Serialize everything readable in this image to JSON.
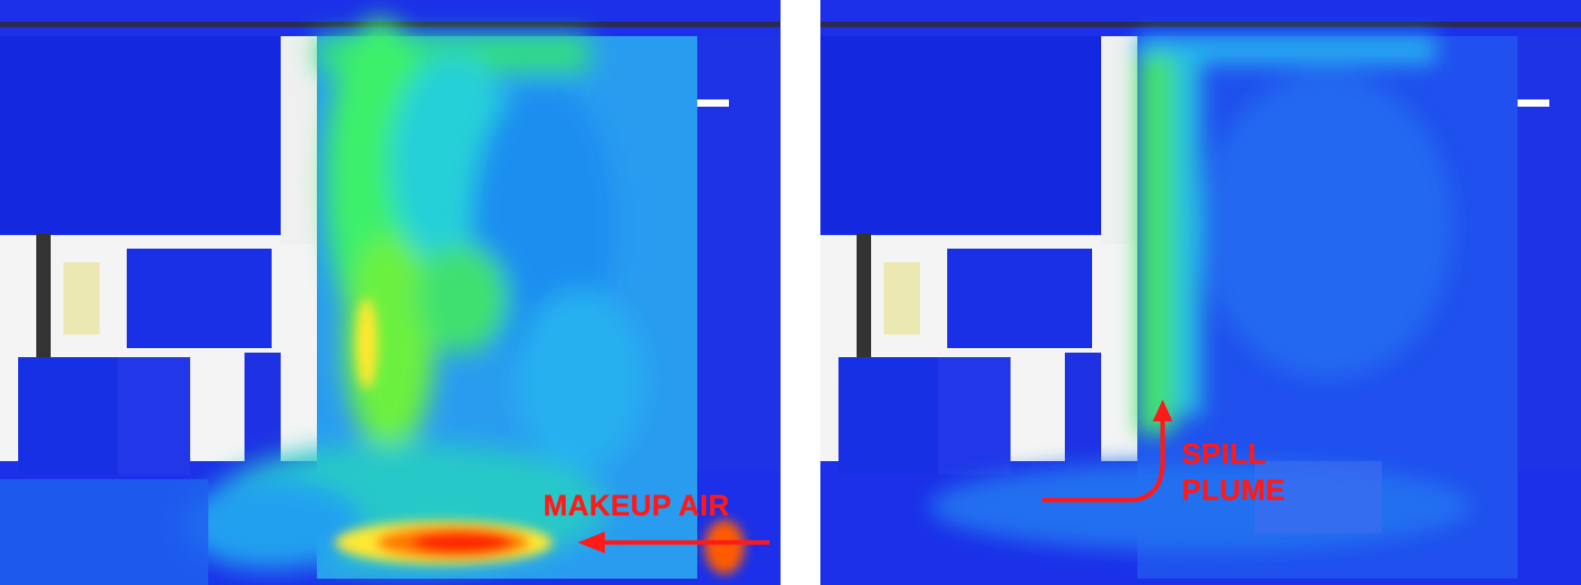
{
  "panels": [
    {
      "id": "left",
      "annotation": "MAKEUP AIR"
    },
    {
      "id": "right",
      "annotation_lines": [
        "SPILL",
        "PLUME"
      ]
    }
  ],
  "colors": {
    "annotation": "#ff1a1a",
    "background_blue": "#1a2ee6",
    "plume_green": "#3ef06a",
    "plume_cyan": "#28c8e8",
    "hot_red": "#ff2a00",
    "hot_yellow": "#ffe830"
  },
  "icons": [
    "left-arrow-icon",
    "curved-up-arrow-icon"
  ]
}
